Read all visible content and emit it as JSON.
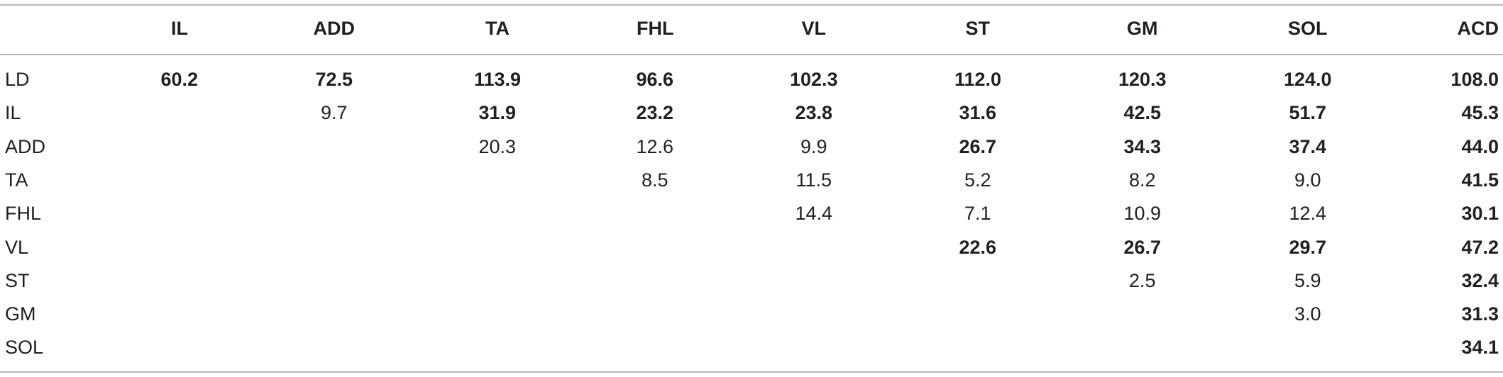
{
  "table": {
    "columns": [
      "IL",
      "ADD",
      "TA",
      "FHL",
      "VL",
      "ST",
      "GM",
      "SOL",
      "ACD"
    ],
    "rows": [
      {
        "label": "LD",
        "cells": [
          "60.2",
          "72.5",
          "113.9",
          "96.6",
          "102.3",
          "112.0",
          "120.3",
          "124.0",
          "108.0"
        ],
        "bold": [
          true,
          true,
          true,
          true,
          true,
          true,
          true,
          true,
          true
        ]
      },
      {
        "label": "IL",
        "cells": [
          null,
          "9.7",
          "31.9",
          "23.2",
          "23.8",
          "31.6",
          "42.5",
          "51.7",
          "45.3"
        ],
        "bold": [
          false,
          false,
          true,
          true,
          true,
          true,
          true,
          true,
          true
        ]
      },
      {
        "label": "ADD",
        "cells": [
          null,
          null,
          "20.3",
          "12.6",
          "9.9",
          "26.7",
          "34.3",
          "37.4",
          "44.0"
        ],
        "bold": [
          false,
          false,
          false,
          false,
          false,
          true,
          true,
          true,
          true
        ]
      },
      {
        "label": "TA",
        "cells": [
          null,
          null,
          null,
          "8.5",
          "11.5",
          "5.2",
          "8.2",
          "9.0",
          "41.5"
        ],
        "bold": [
          false,
          false,
          false,
          false,
          false,
          false,
          false,
          false,
          true
        ]
      },
      {
        "label": "FHL",
        "cells": [
          null,
          null,
          null,
          null,
          "14.4",
          "7.1",
          "10.9",
          "12.4",
          "30.1"
        ],
        "bold": [
          false,
          false,
          false,
          false,
          false,
          false,
          false,
          false,
          true
        ]
      },
      {
        "label": "VL",
        "cells": [
          null,
          null,
          null,
          null,
          null,
          "22.6",
          "26.7",
          "29.7",
          "47.2"
        ],
        "bold": [
          false,
          false,
          false,
          false,
          false,
          true,
          true,
          true,
          true
        ]
      },
      {
        "label": "ST",
        "cells": [
          null,
          null,
          null,
          null,
          null,
          null,
          "2.5",
          "5.9",
          "32.4"
        ],
        "bold": [
          false,
          false,
          false,
          false,
          false,
          false,
          false,
          false,
          true
        ]
      },
      {
        "label": "GM",
        "cells": [
          null,
          null,
          null,
          null,
          null,
          null,
          null,
          "3.0",
          "31.3"
        ],
        "bold": [
          false,
          false,
          false,
          false,
          false,
          false,
          false,
          false,
          true
        ]
      },
      {
        "label": "SOL",
        "cells": [
          null,
          null,
          null,
          null,
          null,
          null,
          null,
          null,
          "34.1"
        ],
        "bold": [
          false,
          false,
          false,
          false,
          false,
          false,
          false,
          false,
          true
        ]
      }
    ]
  }
}
